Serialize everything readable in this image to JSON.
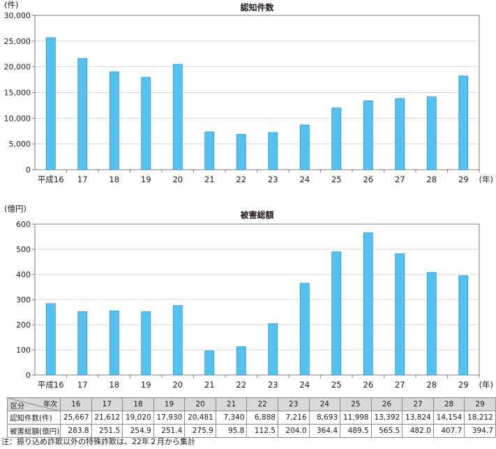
{
  "chart_data": [
    {
      "type": "bar",
      "title": "認知件数",
      "ylabel": "(件)",
      "xlabel": "(年)",
      "ylim": [
        0,
        30000
      ],
      "yticks": [
        0,
        5000,
        10000,
        15000,
        20000,
        25000,
        30000
      ],
      "ytick_labels": [
        "0",
        "5,000",
        "10,000",
        "15,000",
        "20,000",
        "25,000",
        "30,000"
      ],
      "categories": [
        "平成16",
        "17",
        "18",
        "19",
        "20",
        "21",
        "22",
        "23",
        "24",
        "25",
        "26",
        "27",
        "28",
        "29"
      ],
      "values": [
        25667,
        21612,
        19020,
        17930,
        20481,
        7340,
        6888,
        7216,
        8693,
        11998,
        13392,
        13824,
        14154,
        18212
      ],
      "grid": true
    },
    {
      "type": "bar",
      "title": "被害総額",
      "ylabel": "(億円)",
      "xlabel": "(年)",
      "ylim": [
        0,
        600
      ],
      "yticks": [
        0,
        100,
        200,
        300,
        400,
        500,
        600
      ],
      "ytick_labels": [
        "0",
        "100",
        "200",
        "300",
        "400",
        "500",
        "600"
      ],
      "categories": [
        "平成16",
        "17",
        "18",
        "19",
        "20",
        "21",
        "22",
        "23",
        "24",
        "25",
        "26",
        "27",
        "28",
        "29"
      ],
      "values": [
        283.8,
        251.5,
        254.9,
        251.4,
        275.9,
        95.8,
        112.5,
        204.0,
        364.4,
        489.5,
        565.5,
        482.0,
        407.7,
        394.7
      ],
      "grid": true
    }
  ],
  "table": {
    "corner_top": "年次",
    "corner_bottom": "区分",
    "years": [
      "16",
      "17",
      "18",
      "19",
      "20",
      "21",
      "22",
      "23",
      "24",
      "25",
      "26",
      "27",
      "28",
      "29"
    ],
    "rows": [
      {
        "label": "認知件数(件)",
        "cells": [
          "25,667",
          "21,612",
          "19,020",
          "17,930",
          "20,481",
          "7,340",
          "6,888",
          "7,216",
          "8,693",
          "11,998",
          "13,392",
          "13,824",
          "14,154",
          "18,212"
        ]
      },
      {
        "label": "被害総額(億円)",
        "cells": [
          "283.8",
          "251.5",
          "254.9",
          "251.4",
          "275.9",
          "95.8",
          "112.5",
          "204.0",
          "364.4",
          "489.5",
          "565.5",
          "482.0",
          "407.7",
          "394.7"
        ]
      }
    ]
  },
  "note": "注：振り込め詐欺以外の特殊詐欺は、22年２月から集計",
  "colors": {
    "bar_fill": "#54c3f1",
    "bar_stroke": "#2a8cc6",
    "grid": "#d4d4d4",
    "axis": "#5a5a5a",
    "table_head": "#d9d9d9"
  }
}
